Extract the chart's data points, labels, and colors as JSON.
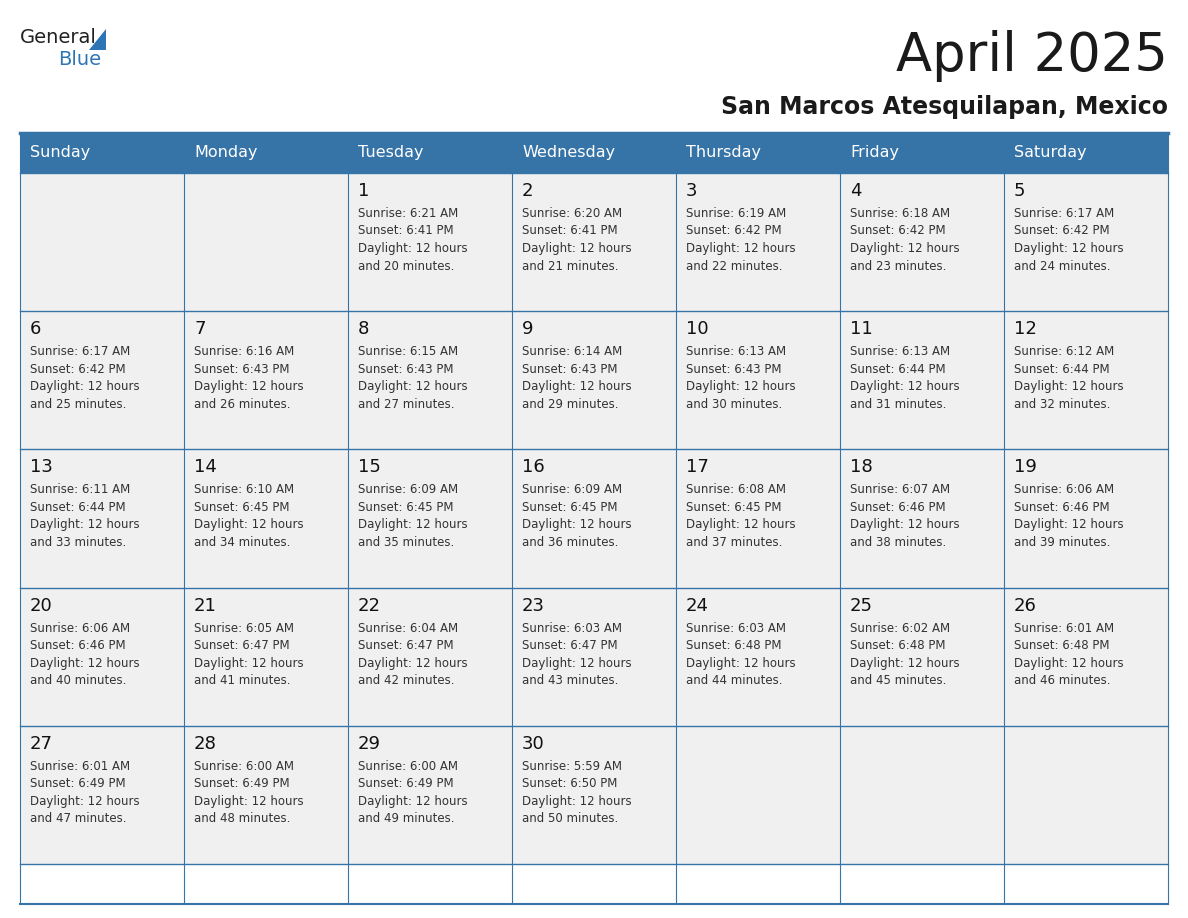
{
  "title": "April 2025",
  "subtitle": "San Marcos Atesquilapan, Mexico",
  "header_bg_color": "#3674a8",
  "header_text_color": "#FFFFFF",
  "cell_bg_color": "#f0f0f0",
  "title_color": "#1a1a1a",
  "subtitle_color": "#1a1a1a",
  "day_names": [
    "Sunday",
    "Monday",
    "Tuesday",
    "Wednesday",
    "Thursday",
    "Friday",
    "Saturday"
  ],
  "weeks": [
    [
      {
        "day": "",
        "info": ""
      },
      {
        "day": "",
        "info": ""
      },
      {
        "day": "1",
        "info": "Sunrise: 6:21 AM\nSunset: 6:41 PM\nDaylight: 12 hours\nand 20 minutes."
      },
      {
        "day": "2",
        "info": "Sunrise: 6:20 AM\nSunset: 6:41 PM\nDaylight: 12 hours\nand 21 minutes."
      },
      {
        "day": "3",
        "info": "Sunrise: 6:19 AM\nSunset: 6:42 PM\nDaylight: 12 hours\nand 22 minutes."
      },
      {
        "day": "4",
        "info": "Sunrise: 6:18 AM\nSunset: 6:42 PM\nDaylight: 12 hours\nand 23 minutes."
      },
      {
        "day": "5",
        "info": "Sunrise: 6:17 AM\nSunset: 6:42 PM\nDaylight: 12 hours\nand 24 minutes."
      }
    ],
    [
      {
        "day": "6",
        "info": "Sunrise: 6:17 AM\nSunset: 6:42 PM\nDaylight: 12 hours\nand 25 minutes."
      },
      {
        "day": "7",
        "info": "Sunrise: 6:16 AM\nSunset: 6:43 PM\nDaylight: 12 hours\nand 26 minutes."
      },
      {
        "day": "8",
        "info": "Sunrise: 6:15 AM\nSunset: 6:43 PM\nDaylight: 12 hours\nand 27 minutes."
      },
      {
        "day": "9",
        "info": "Sunrise: 6:14 AM\nSunset: 6:43 PM\nDaylight: 12 hours\nand 29 minutes."
      },
      {
        "day": "10",
        "info": "Sunrise: 6:13 AM\nSunset: 6:43 PM\nDaylight: 12 hours\nand 30 minutes."
      },
      {
        "day": "11",
        "info": "Sunrise: 6:13 AM\nSunset: 6:44 PM\nDaylight: 12 hours\nand 31 minutes."
      },
      {
        "day": "12",
        "info": "Sunrise: 6:12 AM\nSunset: 6:44 PM\nDaylight: 12 hours\nand 32 minutes."
      }
    ],
    [
      {
        "day": "13",
        "info": "Sunrise: 6:11 AM\nSunset: 6:44 PM\nDaylight: 12 hours\nand 33 minutes."
      },
      {
        "day": "14",
        "info": "Sunrise: 6:10 AM\nSunset: 6:45 PM\nDaylight: 12 hours\nand 34 minutes."
      },
      {
        "day": "15",
        "info": "Sunrise: 6:09 AM\nSunset: 6:45 PM\nDaylight: 12 hours\nand 35 minutes."
      },
      {
        "day": "16",
        "info": "Sunrise: 6:09 AM\nSunset: 6:45 PM\nDaylight: 12 hours\nand 36 minutes."
      },
      {
        "day": "17",
        "info": "Sunrise: 6:08 AM\nSunset: 6:45 PM\nDaylight: 12 hours\nand 37 minutes."
      },
      {
        "day": "18",
        "info": "Sunrise: 6:07 AM\nSunset: 6:46 PM\nDaylight: 12 hours\nand 38 minutes."
      },
      {
        "day": "19",
        "info": "Sunrise: 6:06 AM\nSunset: 6:46 PM\nDaylight: 12 hours\nand 39 minutes."
      }
    ],
    [
      {
        "day": "20",
        "info": "Sunrise: 6:06 AM\nSunset: 6:46 PM\nDaylight: 12 hours\nand 40 minutes."
      },
      {
        "day": "21",
        "info": "Sunrise: 6:05 AM\nSunset: 6:47 PM\nDaylight: 12 hours\nand 41 minutes."
      },
      {
        "day": "22",
        "info": "Sunrise: 6:04 AM\nSunset: 6:47 PM\nDaylight: 12 hours\nand 42 minutes."
      },
      {
        "day": "23",
        "info": "Sunrise: 6:03 AM\nSunset: 6:47 PM\nDaylight: 12 hours\nand 43 minutes."
      },
      {
        "day": "24",
        "info": "Sunrise: 6:03 AM\nSunset: 6:48 PM\nDaylight: 12 hours\nand 44 minutes."
      },
      {
        "day": "25",
        "info": "Sunrise: 6:02 AM\nSunset: 6:48 PM\nDaylight: 12 hours\nand 45 minutes."
      },
      {
        "day": "26",
        "info": "Sunrise: 6:01 AM\nSunset: 6:48 PM\nDaylight: 12 hours\nand 46 minutes."
      }
    ],
    [
      {
        "day": "27",
        "info": "Sunrise: 6:01 AM\nSunset: 6:49 PM\nDaylight: 12 hours\nand 47 minutes."
      },
      {
        "day": "28",
        "info": "Sunrise: 6:00 AM\nSunset: 6:49 PM\nDaylight: 12 hours\nand 48 minutes."
      },
      {
        "day": "29",
        "info": "Sunrise: 6:00 AM\nSunset: 6:49 PM\nDaylight: 12 hours\nand 49 minutes."
      },
      {
        "day": "30",
        "info": "Sunrise: 5:59 AM\nSunset: 6:50 PM\nDaylight: 12 hours\nand 50 minutes."
      },
      {
        "day": "",
        "info": ""
      },
      {
        "day": "",
        "info": ""
      },
      {
        "day": "",
        "info": ""
      }
    ]
  ],
  "logo_general_color": "#222222",
  "logo_blue_color": "#2e75b6",
  "border_color": "#3674a8",
  "line_color": "#3674a8",
  "title_fontsize": 38,
  "subtitle_fontsize": 17,
  "header_fontsize": 11.5,
  "day_num_fontsize": 13,
  "info_fontsize": 8.5
}
